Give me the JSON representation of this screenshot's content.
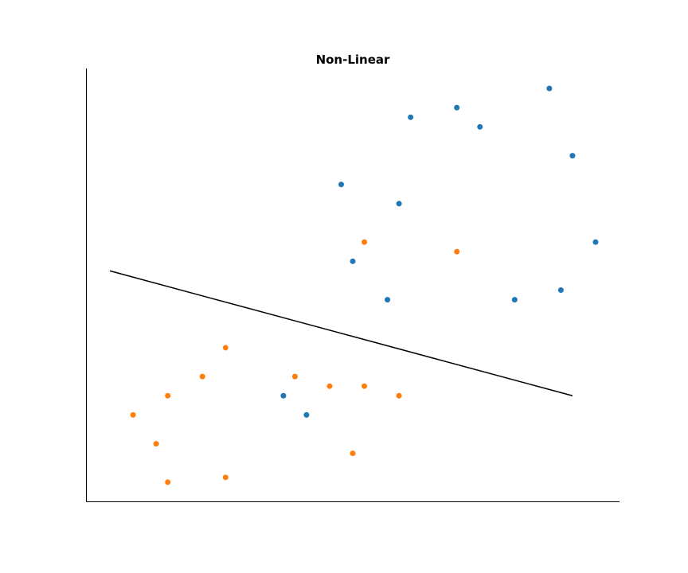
{
  "chart_data": {
    "type": "scatter",
    "title": "Non-Linear",
    "xlabel": "",
    "ylabel": "",
    "xlim": [
      0,
      23
    ],
    "ylim": [
      0,
      45
    ],
    "grid": false,
    "series": [
      {
        "color": "#1f77b4",
        "points": [
          [
            8.5,
            11
          ],
          [
            9.5,
            9
          ],
          [
            11,
            33
          ],
          [
            11.5,
            25
          ],
          [
            13,
            21
          ],
          [
            13.5,
            31
          ],
          [
            14,
            40
          ],
          [
            16,
            41
          ],
          [
            17,
            39
          ],
          [
            18.5,
            21
          ],
          [
            20,
            43
          ],
          [
            20.5,
            22
          ],
          [
            21,
            36
          ],
          [
            22,
            27
          ]
        ]
      },
      {
        "color": "#ff7f0e",
        "points": [
          [
            2,
            9
          ],
          [
            3,
            6
          ],
          [
            3.5,
            2
          ],
          [
            3.5,
            11
          ],
          [
            5,
            13
          ],
          [
            6,
            2.5
          ],
          [
            6,
            16
          ],
          [
            9,
            13
          ],
          [
            10.5,
            12
          ],
          [
            11.5,
            5
          ],
          [
            12,
            12
          ],
          [
            12,
            27
          ],
          [
            13.5,
            11
          ],
          [
            16,
            26
          ]
        ]
      }
    ],
    "line": {
      "color": "#000000",
      "points": [
        [
          1,
          24
        ],
        [
          21,
          11
        ]
      ]
    }
  }
}
